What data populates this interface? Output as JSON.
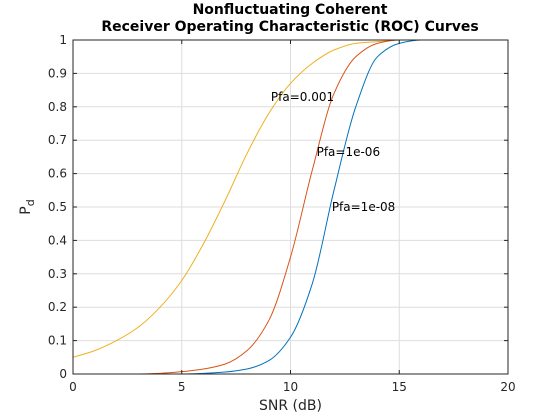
{
  "figure": {
    "title_line1": "Nonfluctuating Coherent",
    "title_line2": "Receiver Operating Characteristic (ROC) Curves"
  },
  "chart_data": {
    "type": "line",
    "title": "Nonfluctuating Coherent Receiver Operating Characteristic (ROC) Curves",
    "xlabel": "SNR (dB)",
    "ylabel": "Pd",
    "ylabel_main": "P",
    "ylabel_sub": "d",
    "xlim": [
      0,
      20
    ],
    "ylim": [
      0,
      1
    ],
    "xticks": [
      0,
      5,
      10,
      15,
      20
    ],
    "yticks": [
      0,
      0.1,
      0.2,
      0.3,
      0.4,
      0.5,
      0.6,
      0.7,
      0.8,
      0.9,
      1
    ],
    "xtick_labels": [
      "0",
      "5",
      "10",
      "15",
      "20"
    ],
    "ytick_labels": [
      "0",
      "0.1",
      "0.2",
      "0.3",
      "0.4",
      "0.5",
      "0.6",
      "0.7",
      "0.8",
      "0.9",
      "1"
    ],
    "grid": true,
    "series": [
      {
        "name": "Pfa=0.001",
        "color": "#EDB120",
        "x": [
          0,
          1,
          2,
          3,
          4,
          5,
          6,
          7,
          8,
          9,
          10,
          11,
          12,
          13,
          14,
          15,
          16,
          17,
          18,
          19,
          20
        ],
        "y": [
          0.05,
          0.07,
          0.1,
          0.14,
          0.2,
          0.28,
          0.39,
          0.52,
          0.66,
          0.78,
          0.87,
          0.93,
          0.97,
          0.99,
          0.995,
          1,
          1,
          1,
          1,
          1,
          1
        ]
      },
      {
        "name": "Pfa=1e-06",
        "color": "#D95319",
        "x": [
          0,
          3,
          4,
          5,
          6,
          7,
          8,
          9,
          10,
          11,
          12,
          13,
          14,
          15,
          16,
          17,
          18,
          19,
          20
        ],
        "y": [
          0,
          0,
          0.002,
          0.007,
          0.015,
          0.03,
          0.07,
          0.16,
          0.35,
          0.61,
          0.84,
          0.95,
          0.99,
          1,
          1,
          1,
          1,
          1,
          1
        ]
      },
      {
        "name": "Pfa=1e-08",
        "color": "#0072BD",
        "x": [
          0,
          5,
          6,
          7,
          8,
          9,
          10,
          11,
          12,
          13,
          14,
          15,
          16,
          17,
          18,
          19,
          20
        ],
        "y": [
          0,
          0,
          0.002,
          0.006,
          0.015,
          0.04,
          0.11,
          0.27,
          0.55,
          0.8,
          0.95,
          0.99,
          1,
          1,
          1,
          1,
          1
        ]
      }
    ],
    "annotations": [
      {
        "text": "Pfa=0.001",
        "x": 9.1,
        "y": 0.83
      },
      {
        "text": "Pfa=1e-06",
        "x": 11.2,
        "y": 0.665
      },
      {
        "text": "Pfa=1e-08",
        "x": 11.9,
        "y": 0.5
      }
    ]
  }
}
